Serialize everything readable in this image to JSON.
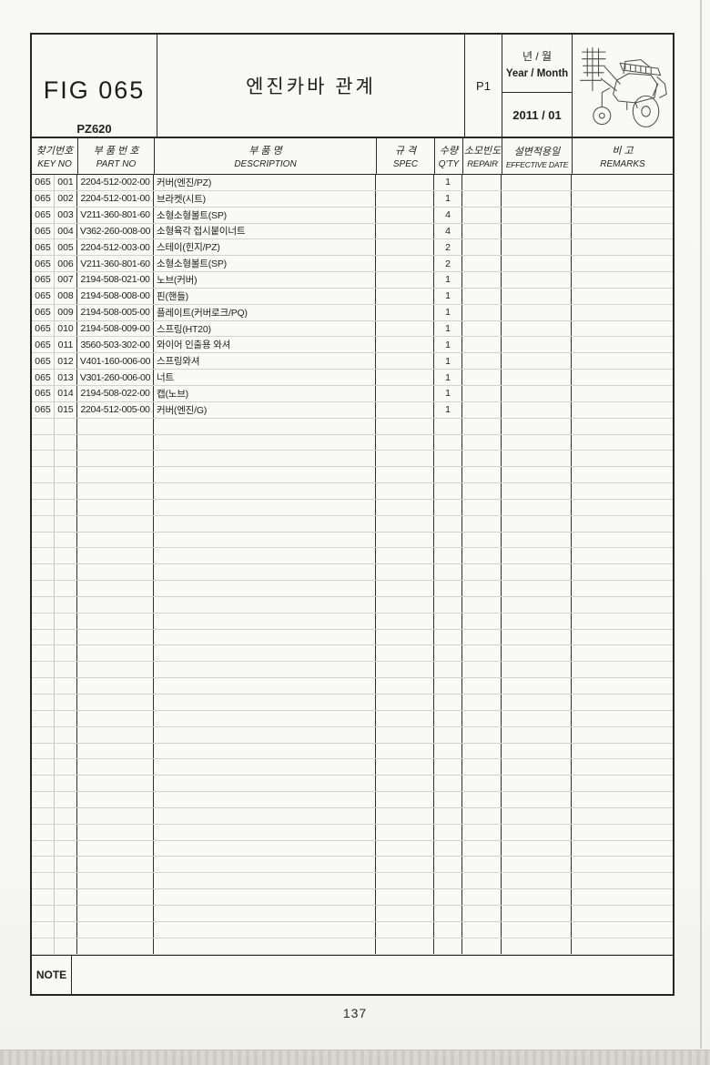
{
  "header": {
    "fig_label": "FIG 065",
    "model_code": "PZ620",
    "title": "엔진카바 관계",
    "page_ref": "P1",
    "year_month": {
      "ko": "년 / 월",
      "en": "Year / Month",
      "value": "2011 / 01"
    },
    "illustration_name": "rice-transplanter-line-art"
  },
  "table": {
    "columns": [
      {
        "ko": "찾기번호",
        "en": "KEY NO"
      },
      {
        "ko": "부 품 번 호",
        "en": "PART NO"
      },
      {
        "ko": "부 품 명",
        "en": "DESCRIPTION"
      },
      {
        "ko": "규 격",
        "en": "SPEC"
      },
      {
        "ko": "수량",
        "en": "Q'TY"
      },
      {
        "ko": "소모빈도",
        "en": "REPAIR"
      },
      {
        "ko": "설변적용일",
        "en": "EFFECTIVE DATE"
      },
      {
        "ko": "비    고",
        "en": "REMARKS"
      }
    ],
    "rows": [
      {
        "fig": "065",
        "key": "001",
        "part": "2204-512-002-00",
        "desc": "커버(엔진/PZ)",
        "spec": "",
        "qty": "1",
        "repair": "",
        "effective": "",
        "remarks": ""
      },
      {
        "fig": "065",
        "key": "002",
        "part": "2204-512-001-00",
        "desc": "브라켓(시트)",
        "spec": "",
        "qty": "1",
        "repair": "",
        "effective": "",
        "remarks": ""
      },
      {
        "fig": "065",
        "key": "003",
        "part": "V211-360-801-60",
        "desc": "소형소형볼트(SP)",
        "spec": "",
        "qty": "4",
        "repair": "",
        "effective": "",
        "remarks": ""
      },
      {
        "fig": "065",
        "key": "004",
        "part": "V362-260-008-00",
        "desc": "소형육각 접시붙이너트",
        "spec": "",
        "qty": "4",
        "repair": "",
        "effective": "",
        "remarks": ""
      },
      {
        "fig": "065",
        "key": "005",
        "part": "2204-512-003-00",
        "desc": "스테이(힌지/PZ)",
        "spec": "",
        "qty": "2",
        "repair": "",
        "effective": "",
        "remarks": ""
      },
      {
        "fig": "065",
        "key": "006",
        "part": "V211-360-801-60",
        "desc": "소형소형볼트(SP)",
        "spec": "",
        "qty": "2",
        "repair": "",
        "effective": "",
        "remarks": ""
      },
      {
        "fig": "065",
        "key": "007",
        "part": "2194-508-021-00",
        "desc": "노브(커버)",
        "spec": "",
        "qty": "1",
        "repair": "",
        "effective": "",
        "remarks": ""
      },
      {
        "fig": "065",
        "key": "008",
        "part": "2194-508-008-00",
        "desc": "핀(핸들)",
        "spec": "",
        "qty": "1",
        "repair": "",
        "effective": "",
        "remarks": ""
      },
      {
        "fig": "065",
        "key": "009",
        "part": "2194-508-005-00",
        "desc": "플레이트(커버로크/PQ)",
        "spec": "",
        "qty": "1",
        "repair": "",
        "effective": "",
        "remarks": ""
      },
      {
        "fig": "065",
        "key": "010",
        "part": "2194-508-009-00",
        "desc": "스프링(HT20)",
        "spec": "",
        "qty": "1",
        "repair": "",
        "effective": "",
        "remarks": ""
      },
      {
        "fig": "065",
        "key": "011",
        "part": "3560-503-302-00",
        "desc": "와이어 인출용 와셔",
        "spec": "",
        "qty": "1",
        "repair": "",
        "effective": "",
        "remarks": ""
      },
      {
        "fig": "065",
        "key": "012",
        "part": "V401-160-006-00",
        "desc": "스프링와셔",
        "spec": "",
        "qty": "1",
        "repair": "",
        "effective": "",
        "remarks": ""
      },
      {
        "fig": "065",
        "key": "013",
        "part": "V301-260-006-00",
        "desc": "너트",
        "spec": "",
        "qty": "1",
        "repair": "",
        "effective": "",
        "remarks": ""
      },
      {
        "fig": "065",
        "key": "014",
        "part": "2194-508-022-00",
        "desc": "캡(노브)",
        "spec": "",
        "qty": "1",
        "repair": "",
        "effective": "",
        "remarks": ""
      },
      {
        "fig": "065",
        "key": "015",
        "part": "2204-512-005-00",
        "desc": "커버(엔진/G)",
        "spec": "",
        "qty": "1",
        "repair": "",
        "effective": "",
        "remarks": ""
      }
    ],
    "empty_row_count": 33
  },
  "footer": {
    "note_label": "NOTE",
    "page_number": "137"
  }
}
